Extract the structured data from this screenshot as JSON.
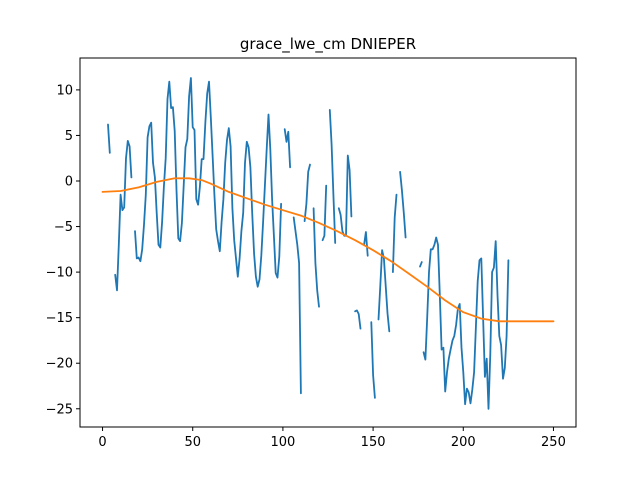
{
  "chart_data": {
    "type": "line",
    "title": "grace_lwe_cm DNIEPER",
    "xlabel": "",
    "ylabel": "",
    "xlim": [
      -12.5,
      262.5
    ],
    "ylim": [
      -27,
      13.5
    ],
    "xticks": [
      0,
      50,
      100,
      150,
      200,
      250
    ],
    "yticks": [
      -25,
      -20,
      -15,
      -10,
      -5,
      0,
      5,
      10
    ],
    "grid": false,
    "series": [
      {
        "color": "#1f77b4",
        "segments": [
          [
            [
              3,
              6.2
            ],
            [
              4,
              3.1
            ]
          ],
          [
            [
              7,
              -10.3
            ],
            [
              8,
              -12.0
            ],
            [
              9,
              -7.0
            ],
            [
              10,
              -1.5
            ],
            [
              11,
              -3.2
            ],
            [
              12,
              -2.9
            ],
            [
              13,
              2.5
            ],
            [
              14,
              4.4
            ],
            [
              15,
              3.8
            ],
            [
              16,
              0.4
            ]
          ],
          [
            [
              18,
              -5.5
            ],
            [
              19,
              -8.5
            ],
            [
              20,
              -8.4
            ],
            [
              21,
              -8.8
            ],
            [
              22,
              -7.5
            ],
            [
              23,
              -4.8
            ],
            [
              24,
              -1.5
            ],
            [
              25,
              4.8
            ],
            [
              26,
              6.0
            ],
            [
              27,
              6.4
            ],
            [
              28,
              2.0
            ],
            [
              29,
              0.4
            ],
            [
              30,
              -3.5
            ],
            [
              31,
              -7.0
            ],
            [
              32,
              -7.3
            ],
            [
              33,
              -4.5
            ],
            [
              34,
              -0.6
            ],
            [
              35,
              2.5
            ],
            [
              36,
              9.0
            ],
            [
              37,
              10.9
            ],
            [
              38,
              8.0
            ],
            [
              39,
              8.1
            ],
            [
              40,
              5.5
            ],
            [
              41,
              -1.0
            ],
            [
              42,
              -6.3
            ],
            [
              43,
              -6.6
            ],
            [
              44,
              -4.6
            ],
            [
              45,
              -0.5
            ],
            [
              46,
              3.7
            ],
            [
              47,
              4.6
            ],
            [
              48,
              9.3
            ],
            [
              49,
              11.3
            ],
            [
              50,
              5.9
            ],
            [
              51,
              5.6
            ],
            [
              52,
              -2.0
            ],
            [
              53,
              -2.6
            ],
            [
              54,
              -0.6
            ],
            [
              55,
              2.4
            ],
            [
              56,
              2.4
            ],
            [
              57,
              6.5
            ],
            [
              58,
              9.6
            ],
            [
              59,
              10.9
            ],
            [
              60,
              7.0
            ],
            [
              61,
              2.8
            ],
            [
              62,
              -1.5
            ],
            [
              63,
              -5.3
            ],
            [
              64,
              -6.6
            ],
            [
              65,
              -7.7
            ],
            [
              66,
              -4.5
            ],
            [
              67,
              -2.0
            ],
            [
              68,
              2.0
            ],
            [
              69,
              4.5
            ],
            [
              70,
              5.8
            ],
            [
              71,
              3.8
            ],
            [
              72,
              -3.0
            ],
            [
              73,
              -6.5
            ],
            [
              74,
              -8.5
            ],
            [
              75,
              -10.5
            ],
            [
              76,
              -8.5
            ],
            [
              77,
              -5.5
            ],
            [
              78,
              -3.5
            ],
            [
              79,
              2.0
            ],
            [
              80,
              4.3
            ],
            [
              81,
              3.7
            ],
            [
              82,
              1.5
            ],
            [
              83,
              -3.5
            ],
            [
              84,
              -8.0
            ],
            [
              85,
              -10.5
            ],
            [
              86,
              -11.6
            ],
            [
              87,
              -10.8
            ],
            [
              88,
              -8.2
            ],
            [
              89,
              -4.5
            ],
            [
              90,
              -0.5
            ],
            [
              91,
              3.5
            ],
            [
              92,
              7.3
            ],
            [
              93,
              3.5
            ],
            [
              94,
              -2.0
            ],
            [
              95,
              -6.0
            ],
            [
              96,
              -10.1
            ],
            [
              97,
              -10.6
            ],
            [
              98,
              -8.3
            ],
            [
              99,
              -2.5
            ]
          ],
          [
            [
              101,
              5.7
            ],
            [
              102,
              4.3
            ],
            [
              103,
              5.4
            ],
            [
              104,
              1.5
            ]
          ],
          [
            [
              106,
              -4.0
            ],
            [
              107,
              -5.5
            ],
            [
              108,
              -7.0
            ],
            [
              109,
              -9.0
            ],
            [
              110,
              -23.3
            ]
          ],
          [
            [
              112,
              -4.4
            ],
            [
              113,
              -2.5
            ],
            [
              114,
              1.0
            ],
            [
              115,
              1.8
            ]
          ],
          [
            [
              117,
              -3.0
            ],
            [
              118,
              -9.0
            ],
            [
              119,
              -12.0
            ],
            [
              120,
              -13.8
            ]
          ],
          [
            [
              122,
              -6.5
            ],
            [
              123,
              -6.0
            ],
            [
              124,
              -0.5
            ]
          ],
          [
            [
              126,
              7.8
            ],
            [
              127,
              4.0
            ],
            [
              128,
              -1.5
            ],
            [
              129,
              -6.8
            ]
          ],
          [
            [
              131,
              -3.0
            ],
            [
              132,
              -3.7
            ],
            [
              133,
              -5.5
            ],
            [
              134,
              -6.0
            ],
            [
              135,
              -6.0
            ],
            [
              136,
              2.8
            ],
            [
              137,
              1.2
            ],
            [
              138,
              -3.9
            ]
          ],
          [
            [
              140,
              -14.3
            ],
            [
              141,
              -14.2
            ],
            [
              142,
              -14.6
            ],
            [
              143,
              -16.2
            ]
          ],
          [
            [
              145,
              -7.0
            ],
            [
              146,
              -5.6
            ],
            [
              147,
              -8.2
            ]
          ],
          [
            [
              149,
              -15.5
            ],
            [
              150,
              -21.3
            ],
            [
              151,
              -23.8
            ]
          ],
          [
            [
              153,
              -15.2
            ],
            [
              154,
              -11.5
            ],
            [
              155,
              -7.6
            ],
            [
              156,
              -8.5
            ],
            [
              157,
              -11.5
            ],
            [
              158,
              -14.5
            ],
            [
              159,
              -16.5
            ]
          ],
          [
            [
              161,
              -10.0
            ],
            [
              162,
              -4.0
            ],
            [
              163,
              -1.5
            ]
          ],
          [
            [
              165,
              1.0
            ],
            [
              166,
              -1.0
            ],
            [
              167,
              -3.5
            ],
            [
              168,
              -6.2
            ]
          ],
          [
            [
              176,
              -9.4
            ],
            [
              177,
              -8.9
            ]
          ],
          [
            [
              178,
              -18.8
            ],
            [
              179,
              -19.6
            ],
            [
              180,
              -15.0
            ],
            [
              181,
              -10.0
            ],
            [
              182,
              -7.5
            ],
            [
              183,
              -7.5
            ],
            [
              184,
              -7.0
            ],
            [
              185,
              -6.2
            ],
            [
              186,
              -7.0
            ],
            [
              187,
              -12.5
            ],
            [
              188,
              -18.5
            ],
            [
              189,
              -18.3
            ],
            [
              190,
              -23.1
            ],
            [
              191,
              -21.0
            ],
            [
              192,
              -19.5
            ],
            [
              193,
              -18.5
            ],
            [
              194,
              -17.5
            ],
            [
              195,
              -17.0
            ],
            [
              196,
              -15.8
            ],
            [
              197,
              -14.0
            ],
            [
              198,
              -13.5
            ],
            [
              199,
              -18.3
            ],
            [
              200,
              -21.0
            ],
            [
              201,
              -24.5
            ],
            [
              202,
              -22.8
            ],
            [
              203,
              -23.2
            ],
            [
              204,
              -24.4
            ],
            [
              205,
              -22.9
            ],
            [
              206,
              -21.0
            ],
            [
              207,
              -16.0
            ],
            [
              208,
              -11.0
            ],
            [
              209,
              -8.7
            ],
            [
              210,
              -8.5
            ],
            [
              211,
              -15.0
            ],
            [
              212,
              -21.5
            ],
            [
              213,
              -19.5
            ],
            [
              214,
              -25.0
            ],
            [
              215,
              -19.0
            ],
            [
              216,
              -10.0
            ],
            [
              217,
              -9.5
            ],
            [
              218,
              -6.6
            ],
            [
              219,
              -12.5
            ],
            [
              220,
              -17.0
            ],
            [
              221,
              -18.0
            ],
            [
              222,
              -21.7
            ],
            [
              223,
              -20.5
            ],
            [
              224,
              -17.0
            ],
            [
              225,
              -8.7
            ]
          ]
        ]
      },
      {
        "color": "#ff7f0e",
        "x": [
          0,
          10,
          20,
          30,
          40,
          48,
          55,
          60,
          70,
          80,
          90,
          100,
          110,
          120,
          130,
          140,
          150,
          160,
          170,
          180,
          190,
          200,
          210,
          220,
          230,
          240,
          250
        ],
        "values": [
          -1.2,
          -1.1,
          -0.7,
          -0.1,
          0.3,
          0.3,
          0.1,
          -0.3,
          -1.2,
          -1.9,
          -2.6,
          -3.2,
          -3.8,
          -4.6,
          -5.5,
          -6.5,
          -7.6,
          -8.8,
          -10.2,
          -11.6,
          -13.1,
          -14.4,
          -15.1,
          -15.4,
          -15.4,
          -15.4,
          -15.4
        ]
      }
    ]
  }
}
